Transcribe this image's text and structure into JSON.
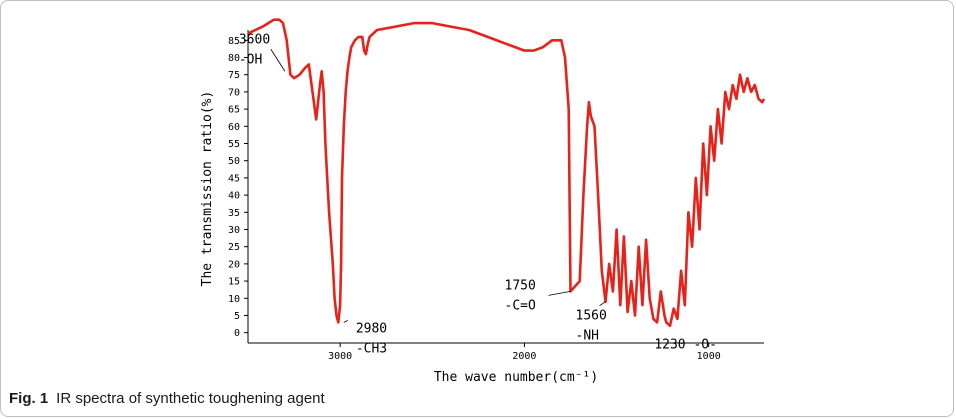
{
  "chart_data": {
    "type": "line",
    "title": "",
    "xlabel": "The wave number(cm⁻¹)",
    "ylabel": "The transmission ratio(%)",
    "x_reversed": true,
    "xlim": [
      3500,
      700
    ],
    "ylim": [
      -3,
      88
    ],
    "x_ticks": [
      3000,
      2000,
      1000
    ],
    "y_ticks": [
      0,
      5,
      10,
      15,
      20,
      25,
      30,
      35,
      40,
      45,
      50,
      55,
      60,
      65,
      70,
      75,
      80,
      85
    ],
    "grid": false,
    "color": "#e8221a",
    "series": [
      {
        "name": "",
        "x": [
          3500,
          3460,
          3420,
          3390,
          3360,
          3330,
          3310,
          3290,
          3270,
          3250,
          3220,
          3190,
          3170,
          3150,
          3130,
          3110,
          3100,
          3090,
          3080,
          3070,
          3060,
          3040,
          3030,
          3020,
          3010,
          3000,
          2995,
          2990,
          2980,
          2970,
          2960,
          2950,
          2940,
          2920,
          2900,
          2880,
          2870,
          2860,
          2850,
          2840,
          2800,
          2700,
          2600,
          2500,
          2400,
          2300,
          2200,
          2100,
          2000,
          1950,
          1900,
          1850,
          1800,
          1780,
          1760,
          1750,
          1700,
          1680,
          1660,
          1650,
          1640,
          1620,
          1600,
          1580,
          1560,
          1540,
          1520,
          1500,
          1480,
          1460,
          1440,
          1420,
          1400,
          1380,
          1360,
          1340,
          1320,
          1300,
          1280,
          1260,
          1240,
          1230,
          1210,
          1190,
          1170,
          1150,
          1130,
          1110,
          1090,
          1070,
          1050,
          1030,
          1010,
          990,
          970,
          950,
          930,
          910,
          890,
          870,
          850,
          830,
          810,
          790,
          770,
          750,
          730,
          710,
          700
        ],
        "y": [
          87,
          88,
          89,
          90,
          91,
          91,
          90,
          85,
          75,
          74,
          75,
          77,
          78,
          70,
          62,
          72,
          76,
          70,
          55,
          45,
          35,
          20,
          10,
          5,
          3,
          8,
          20,
          45,
          60,
          70,
          76,
          80,
          83,
          85,
          86,
          86,
          82,
          81,
          84,
          86,
          88,
          89,
          90,
          90,
          89,
          88,
          86,
          84,
          82,
          82,
          83,
          85,
          85,
          80,
          65,
          12,
          15,
          40,
          60,
          67,
          63,
          60,
          40,
          18,
          9,
          20,
          12,
          30,
          8,
          28,
          6,
          15,
          5,
          25,
          8,
          27,
          10,
          4,
          3,
          12,
          5,
          3,
          2,
          7,
          4,
          18,
          8,
          35,
          25,
          45,
          30,
          55,
          40,
          60,
          50,
          65,
          55,
          70,
          65,
          72,
          68,
          75,
          70,
          74,
          70,
          72,
          68,
          67,
          68
        ]
      }
    ],
    "annotations": [
      {
        "text": "3600",
        "subtext": "-OH",
        "x": 3300,
        "y": 76
      },
      {
        "text": "2980",
        "subtext": "-CH3",
        "x": 2980,
        "y": 3
      },
      {
        "text": "1750",
        "subtext": "-C=O",
        "x": 1750,
        "y": 12
      },
      {
        "text": "1560",
        "subtext": "-NH",
        "x": 1560,
        "y": 9
      },
      {
        "text": "1230 -O-",
        "subtext": "",
        "x": 1230,
        "y": 3
      }
    ]
  },
  "caption": {
    "label": "Fig. 1",
    "text": "IR spectra of synthetic toughening agent"
  }
}
